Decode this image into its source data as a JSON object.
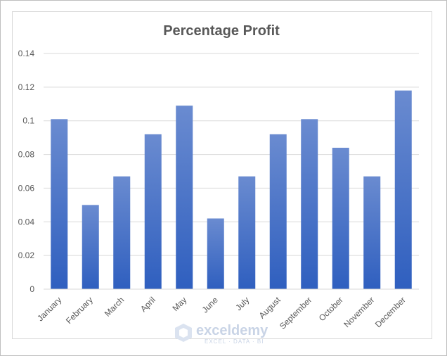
{
  "chart_data": {
    "type": "bar",
    "title": "Percentage Profit",
    "categories": [
      "January",
      "February",
      "March",
      "April",
      "May",
      "June",
      "July",
      "August",
      "September",
      "October",
      "November",
      "December"
    ],
    "values": [
      0.101,
      0.05,
      0.067,
      0.092,
      0.109,
      0.042,
      0.067,
      0.092,
      0.101,
      0.084,
      0.067,
      0.118
    ],
    "yticks": [
      "0",
      "0.02",
      "0.04",
      "0.06",
      "0.08",
      "0.1",
      "0.12",
      "0.14"
    ],
    "ylim": [
      0,
      0.14
    ],
    "grid": true,
    "legend": "none",
    "colors": {
      "bar_top": "#6a8bd0",
      "bar_bottom": "#2f5fbf",
      "grid": "#d9d9d9"
    }
  },
  "watermark": {
    "name": "exceldemy",
    "tagline": "EXCEL · DATA · BI"
  }
}
